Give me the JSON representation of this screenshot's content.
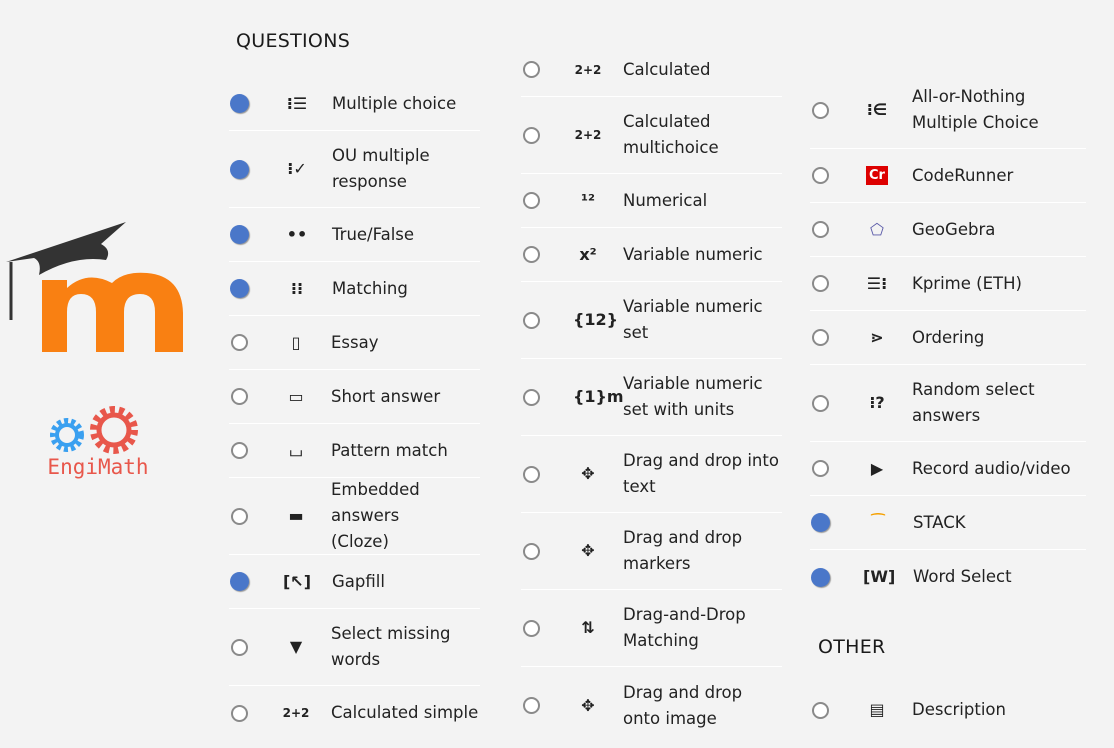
{
  "headers": {
    "questions": "QUESTIONS",
    "other": "OTHER"
  },
  "logo": {
    "engimath": "EngiMath"
  },
  "colors": {
    "selected": "#4a77c9",
    "moodle_orange": "#f98012",
    "moodle_cap": "#333333",
    "gear_blue": "#3aa0f0",
    "gear_red": "#e8574b"
  },
  "columns": [
    [
      {
        "lines": [
          "Multiple choice"
        ],
        "selected": true,
        "icon": "list-icon",
        "glyph": "⁝☰"
      },
      {
        "lines": [
          "OU multiple",
          "response"
        ],
        "selected": true,
        "icon": "checklist-icon",
        "glyph": "⁝✓"
      },
      {
        "lines": [
          "True/False"
        ],
        "selected": true,
        "icon": "two-dots-icon",
        "glyph": "••"
      },
      {
        "lines": [
          "Matching"
        ],
        "selected": true,
        "icon": "matching-icon",
        "glyph": "⁝⁝"
      },
      {
        "lines": [
          "Essay"
        ],
        "selected": false,
        "icon": "document-icon",
        "glyph": "▯"
      },
      {
        "lines": [
          "Short answer"
        ],
        "selected": false,
        "icon": "text-box-icon",
        "glyph": "▭"
      },
      {
        "lines": [
          "Pattern match"
        ],
        "selected": false,
        "icon": "pattern-icon",
        "glyph": "⌴"
      },
      {
        "lines": [
          "Embedded answers",
          "(Cloze)"
        ],
        "selected": false,
        "icon": "cloze-icon",
        "glyph": "▬"
      },
      {
        "lines": [
          "Gapfill"
        ],
        "selected": true,
        "icon": "gapfill-icon",
        "glyph": "[↖]"
      },
      {
        "lines": [
          "Select missing",
          "words"
        ],
        "selected": false,
        "icon": "triangle-down-icon",
        "glyph": "▼"
      },
      {
        "lines": [
          "Calculated simple"
        ],
        "selected": false,
        "icon": "calculator-icon",
        "glyph": "2+2"
      }
    ],
    [
      {
        "lines": [
          "Calculated"
        ],
        "selected": false,
        "icon": "calculated-icon",
        "glyph": "2+2"
      },
      {
        "lines": [
          "Calculated",
          "multichoice"
        ],
        "selected": false,
        "icon": "calculated-multi-icon",
        "glyph": "2+2"
      },
      {
        "lines": [
          "Numerical"
        ],
        "selected": false,
        "icon": "numerical-icon",
        "glyph": "¹²"
      },
      {
        "lines": [
          "Variable numeric"
        ],
        "selected": false,
        "icon": "variable-numeric-icon",
        "glyph": "x²"
      },
      {
        "lines": [
          "Variable numeric",
          "set"
        ],
        "selected": false,
        "icon": "variable-set-icon",
        "glyph": "{12}"
      },
      {
        "lines": [
          "Variable numeric",
          "set with units"
        ],
        "selected": false,
        "icon": "variable-units-icon",
        "glyph": "{1}m"
      },
      {
        "lines": [
          "Drag and drop into",
          "text"
        ],
        "selected": false,
        "icon": "move-icon",
        "glyph": "✥"
      },
      {
        "lines": [
          "Drag and drop",
          "markers"
        ],
        "selected": false,
        "icon": "markers-icon",
        "glyph": "✥"
      },
      {
        "lines": [
          "Drag-and-Drop",
          "Matching"
        ],
        "selected": false,
        "icon": "dd-matching-icon",
        "glyph": "⇅"
      },
      {
        "lines": [
          "Drag and drop",
          "onto image"
        ],
        "selected": false,
        "icon": "arrows-icon",
        "glyph": "✥"
      }
    ],
    [
      {
        "lines": [
          "All-or-Nothing",
          "Multiple Choice"
        ],
        "selected": false,
        "icon": "all-or-nothing-icon",
        "glyph": "⁝∈"
      },
      {
        "lines": [
          "CodeRunner"
        ],
        "selected": false,
        "icon": "coderunner-icon",
        "glyph": "Cr"
      },
      {
        "lines": [
          "GeoGebra"
        ],
        "selected": false,
        "icon": "geogebra-icon",
        "glyph": "⬠"
      },
      {
        "lines": [
          "Kprime (ETH)"
        ],
        "selected": false,
        "icon": "kprime-icon",
        "glyph": "☰⁝"
      },
      {
        "lines": [
          "Ordering"
        ],
        "selected": false,
        "icon": "ordering-icon",
        "glyph": "⋗"
      },
      {
        "lines": [
          "Random select",
          "answers"
        ],
        "selected": false,
        "icon": "random-icon",
        "glyph": "⁝?"
      },
      {
        "lines": [
          "Record audio/video"
        ],
        "selected": false,
        "icon": "record-icon",
        "glyph": "▶"
      },
      {
        "lines": [
          "STACK"
        ],
        "selected": true,
        "icon": "stack-icon",
        "glyph": "⁀"
      },
      {
        "lines": [
          "Word Select"
        ],
        "selected": true,
        "icon": "word-select-icon",
        "glyph": "[W]"
      }
    ],
    [
      {
        "lines": [
          "Description"
        ],
        "selected": false,
        "icon": "description-icon",
        "glyph": "▤"
      }
    ]
  ]
}
